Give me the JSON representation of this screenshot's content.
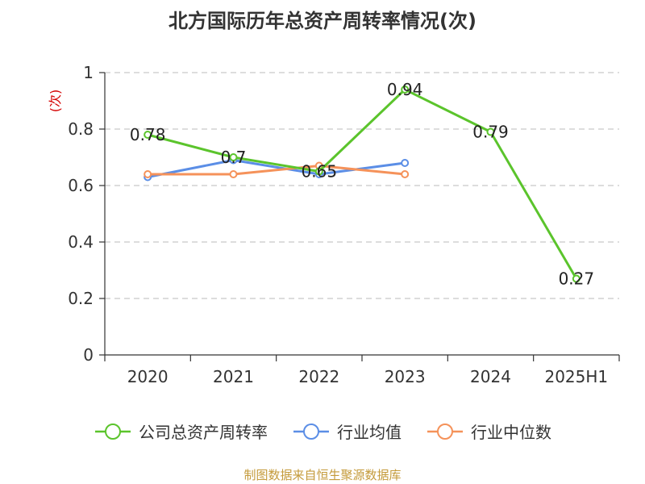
{
  "title": "北方国际历年总资产周转率情况(次)",
  "source": "制图数据来自恒生聚源数据库",
  "chart_data": {
    "type": "line",
    "title": "北方国际历年总资产周转率情况(次)",
    "ylabel": "(次)",
    "xlabel": "",
    "categories": [
      "2020",
      "2021",
      "2022",
      "2023",
      "2024",
      "2025H1"
    ],
    "ylim": [
      0,
      1
    ],
    "yticks": [
      0,
      0.2,
      0.4,
      0.6,
      0.8,
      1
    ],
    "grid": true,
    "legend_position": "bottom",
    "series": [
      {
        "name": "公司总资产周转率",
        "color": "#5bc42c",
        "values": [
          0.78,
          0.7,
          0.65,
          0.94,
          0.79,
          0.27
        ],
        "labels": [
          "0.78",
          "0.7",
          "0.65",
          "0.94",
          "0.79",
          "0.27"
        ]
      },
      {
        "name": "行业均值",
        "color": "#5b8ee6",
        "values": [
          0.63,
          0.69,
          0.64,
          0.68,
          null,
          null
        ]
      },
      {
        "name": "行业中位数",
        "color": "#f5925a",
        "values": [
          0.64,
          0.64,
          0.67,
          0.64,
          null,
          null
        ]
      }
    ]
  }
}
